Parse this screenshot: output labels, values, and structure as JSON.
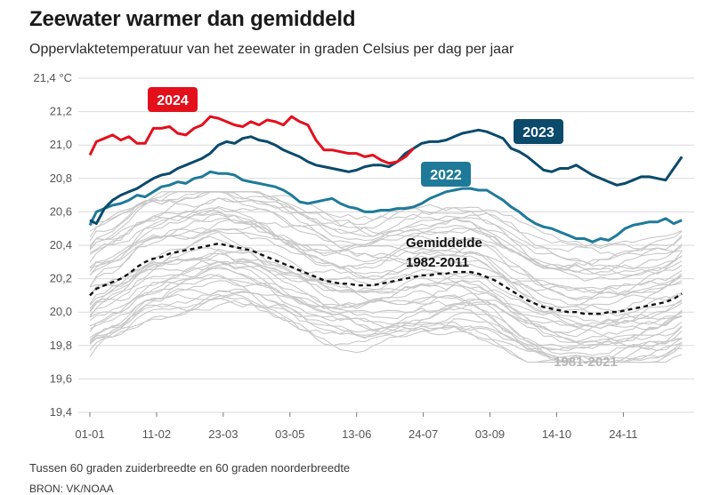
{
  "title": "Zeewater warmer dan gemiddeld",
  "subtitle": "Oppervlaktetemperatuur van het zeewater in graden Celsius per dag per jaar",
  "footnote": "Tussen 60 graden zuiderbreedte en 60 graden noorderbreedte",
  "source": "BRON: VK/NOAA",
  "colors": {
    "y2024": "#e3101c",
    "y2023": "#0b4a6b",
    "y2022": "#1f7a99",
    "average": "#111111",
    "history": "#c8c8c8",
    "grid": "#d9d9d9"
  },
  "chart_data": {
    "type": "line",
    "title": "Zeewater warmer dan gemiddeld",
    "xlabel": "",
    "ylabel": "°C",
    "ylim": [
      19.4,
      21.4
    ],
    "yticks": [
      19.4,
      19.6,
      19.8,
      20.0,
      20.2,
      20.4,
      20.6,
      20.8,
      21.0,
      21.2,
      21.4
    ],
    "ytick_labels": [
      "19,4",
      "19,6",
      "19,8",
      "20,0",
      "20,2",
      "20,4",
      "20,6",
      "20,8",
      "21,0",
      "21,2",
      "21,4 °C"
    ],
    "xlim": [
      1,
      366
    ],
    "xticks": [
      1,
      42,
      83,
      124,
      165,
      206,
      247,
      288,
      329
    ],
    "xtick_labels": [
      "01-01",
      "11-02",
      "23-03",
      "03-05",
      "13-06",
      "24-07",
      "03-09",
      "14-10",
      "24-11"
    ],
    "grid": true,
    "series": [
      {
        "name": "2024",
        "label": "2024",
        "style": "solid",
        "x": [
          1,
          5,
          10,
          15,
          20,
          25,
          30,
          35,
          40,
          45,
          50,
          55,
          60,
          65,
          70,
          75,
          80,
          85,
          90,
          95,
          100,
          105,
          110,
          115,
          120,
          125,
          130,
          135,
          140,
          145,
          150,
          155,
          160,
          165,
          170,
          175,
          180,
          185,
          190,
          195,
          200
        ],
        "values": [
          20.94,
          21.02,
          21.04,
          21.06,
          21.03,
          21.05,
          21.01,
          21.01,
          21.1,
          21.1,
          21.11,
          21.07,
          21.06,
          21.1,
          21.12,
          21.17,
          21.16,
          21.14,
          21.12,
          21.11,
          21.14,
          21.12,
          21.15,
          21.14,
          21.12,
          21.17,
          21.14,
          21.12,
          21.03,
          20.97,
          20.97,
          20.96,
          20.95,
          20.95,
          20.93,
          20.94,
          20.91,
          20.89,
          20.9,
          20.93,
          20.98
        ]
      },
      {
        "name": "2023",
        "label": "2023",
        "style": "solid",
        "x": [
          1,
          5,
          10,
          15,
          20,
          25,
          30,
          35,
          40,
          45,
          50,
          55,
          60,
          65,
          70,
          75,
          80,
          85,
          90,
          95,
          100,
          105,
          110,
          115,
          120,
          125,
          130,
          135,
          140,
          145,
          150,
          155,
          160,
          165,
          170,
          175,
          180,
          185,
          190,
          195,
          200,
          205,
          210,
          215,
          220,
          225,
          230,
          235,
          240,
          245,
          250,
          255,
          260,
          265,
          270,
          275,
          280,
          285,
          290,
          295,
          300,
          305,
          310,
          315,
          320,
          325,
          330,
          335,
          340,
          345,
          350,
          355,
          360,
          365
        ],
        "values": [
          20.55,
          20.53,
          20.62,
          20.67,
          20.7,
          20.72,
          20.74,
          20.77,
          20.8,
          20.82,
          20.83,
          20.86,
          20.88,
          20.9,
          20.92,
          20.95,
          21.0,
          21.02,
          21.01,
          21.04,
          21.05,
          21.03,
          21.02,
          21.0,
          20.97,
          20.95,
          20.93,
          20.9,
          20.88,
          20.87,
          20.86,
          20.85,
          20.84,
          20.85,
          20.87,
          20.88,
          20.88,
          20.87,
          20.9,
          20.95,
          20.98,
          21.01,
          21.02,
          21.02,
          21.03,
          21.05,
          21.07,
          21.08,
          21.09,
          21.08,
          21.06,
          21.04,
          20.98,
          20.96,
          20.93,
          20.89,
          20.85,
          20.84,
          20.86,
          20.86,
          20.88,
          20.85,
          20.82,
          20.8,
          20.78,
          20.76,
          20.77,
          20.79,
          20.81,
          20.81,
          20.8,
          20.79,
          20.86,
          20.93
        ]
      },
      {
        "name": "2022",
        "label": "2022",
        "style": "solid",
        "x": [
          1,
          5,
          10,
          15,
          20,
          25,
          30,
          35,
          40,
          45,
          50,
          55,
          60,
          65,
          70,
          75,
          80,
          85,
          90,
          95,
          100,
          105,
          110,
          115,
          120,
          125,
          130,
          135,
          140,
          145,
          150,
          155,
          160,
          165,
          170,
          175,
          180,
          185,
          190,
          195,
          200,
          205,
          210,
          215,
          220,
          225,
          230,
          235,
          240,
          245,
          250,
          255,
          260,
          265,
          270,
          275,
          280,
          285,
          290,
          295,
          300,
          305,
          310,
          315,
          320,
          325,
          330,
          335,
          340,
          345,
          350,
          355,
          360,
          365
        ],
        "values": [
          20.52,
          20.6,
          20.62,
          20.64,
          20.65,
          20.67,
          20.7,
          20.69,
          20.72,
          20.75,
          20.76,
          20.78,
          20.77,
          20.8,
          20.81,
          20.84,
          20.83,
          20.83,
          20.82,
          20.79,
          20.78,
          20.77,
          20.76,
          20.75,
          20.73,
          20.7,
          20.66,
          20.65,
          20.66,
          20.67,
          20.68,
          20.65,
          20.63,
          20.62,
          20.6,
          20.6,
          20.61,
          20.61,
          20.62,
          20.62,
          20.63,
          20.65,
          20.68,
          20.7,
          20.72,
          20.73,
          20.74,
          20.74,
          20.73,
          20.73,
          20.7,
          20.67,
          20.63,
          20.6,
          20.56,
          20.53,
          20.51,
          20.5,
          20.48,
          20.46,
          20.44,
          20.44,
          20.42,
          20.44,
          20.43,
          20.46,
          20.5,
          20.52,
          20.53,
          20.54,
          20.54,
          20.56,
          20.53,
          20.55
        ]
      },
      {
        "name": "Gemiddelde 1982-2011",
        "label": "Gemiddelde\n1982-2011",
        "style": "dashed",
        "x": [
          1,
          5,
          10,
          15,
          20,
          25,
          30,
          35,
          40,
          45,
          50,
          55,
          60,
          65,
          70,
          75,
          80,
          85,
          90,
          95,
          100,
          105,
          110,
          115,
          120,
          125,
          130,
          135,
          140,
          145,
          150,
          155,
          160,
          165,
          170,
          175,
          180,
          185,
          190,
          195,
          200,
          205,
          210,
          215,
          220,
          225,
          230,
          235,
          240,
          245,
          250,
          255,
          260,
          265,
          270,
          275,
          280,
          285,
          290,
          295,
          300,
          305,
          310,
          315,
          320,
          325,
          330,
          335,
          340,
          345,
          350,
          355,
          360,
          365
        ],
        "values": [
          20.1,
          20.14,
          20.16,
          20.18,
          20.2,
          20.23,
          20.27,
          20.3,
          20.32,
          20.33,
          20.35,
          20.36,
          20.37,
          20.38,
          20.39,
          20.4,
          20.41,
          20.4,
          20.39,
          20.38,
          20.37,
          20.35,
          20.33,
          20.31,
          20.29,
          20.27,
          20.25,
          20.23,
          20.21,
          20.19,
          20.18,
          20.17,
          20.17,
          20.16,
          20.16,
          20.16,
          20.17,
          20.18,
          20.19,
          20.2,
          20.21,
          20.22,
          20.22,
          20.23,
          20.23,
          20.24,
          20.24,
          20.24,
          20.23,
          20.21,
          20.19,
          20.16,
          20.13,
          20.1,
          20.07,
          20.05,
          20.03,
          20.02,
          20.01,
          20.0,
          20.0,
          19.99,
          19.99,
          19.99,
          20.0,
          20.0,
          20.01,
          20.02,
          20.03,
          20.04,
          20.05,
          20.06,
          20.08,
          20.11
        ]
      }
    ],
    "background_range": {
      "label": "1981-2021",
      "years": 41,
      "color": "#c8c8c8",
      "note": "individuele jaarlijnen; getoond als grijze waaier rond het gemiddelde",
      "spread": [
        0.35,
        0.4,
        0.4,
        0.38,
        0.32,
        0.3,
        0.3,
        0.28,
        0.3,
        0.32
      ]
    }
  }
}
